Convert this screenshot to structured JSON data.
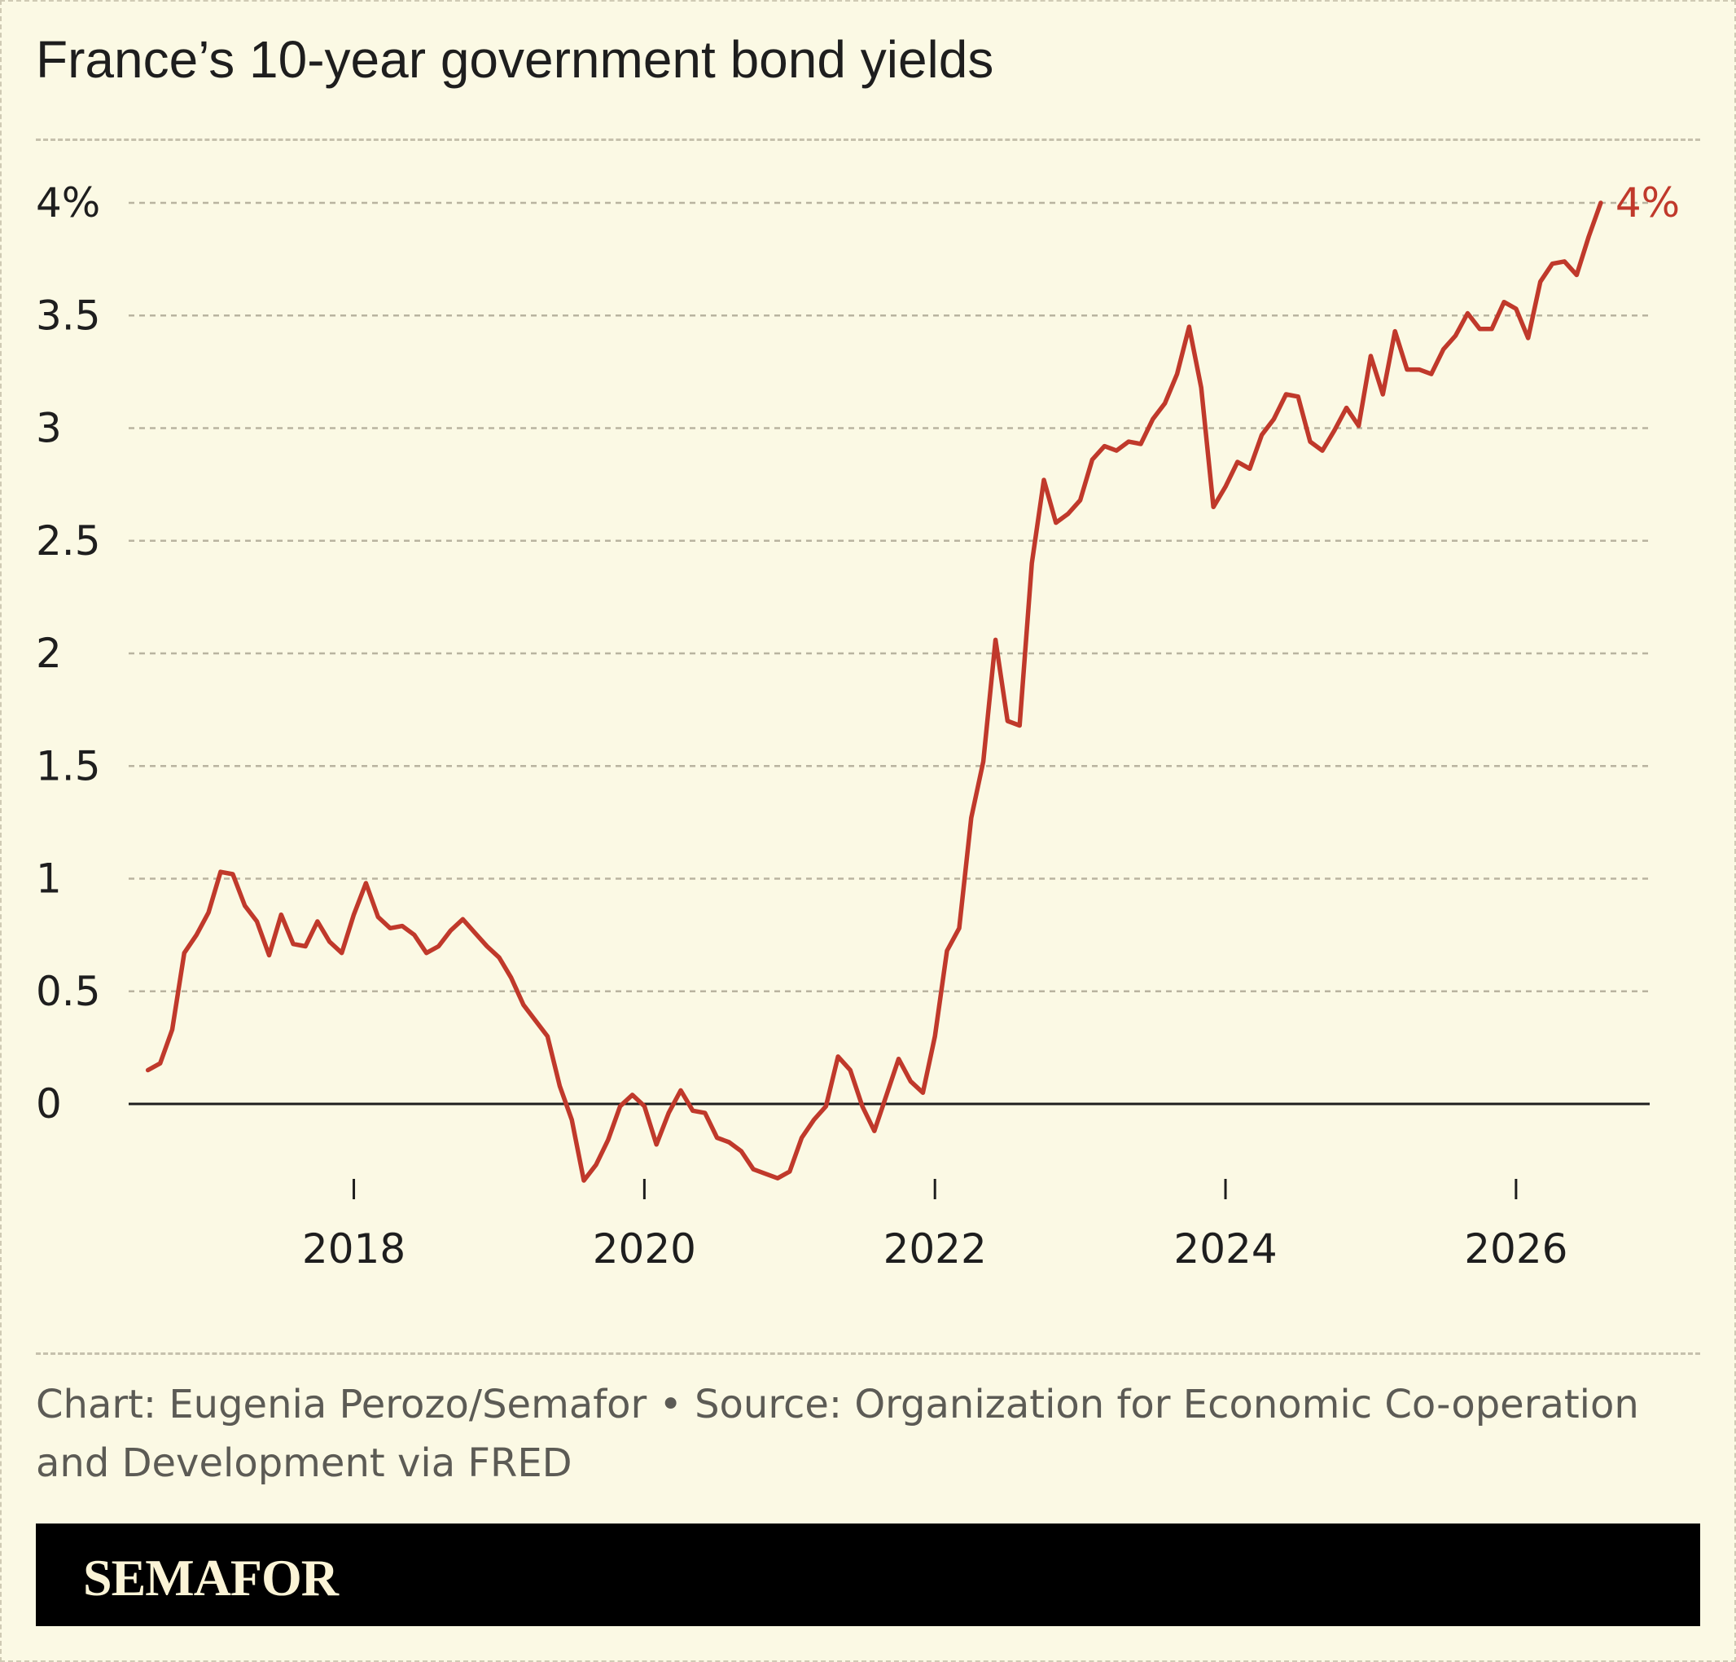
{
  "title": "France’s 10-year government bond yields",
  "source": "Chart: Eugenia Perozo/Semafor • Source: Organization for Economic Co-operation and Development via FRED",
  "brand": "SEMAFOR",
  "colors": {
    "background": "#fbf9e4",
    "line": "#c0392b",
    "grid": "#b9b4a0",
    "zero_line": "#1e1e1e",
    "brand_bar": "#000000",
    "brand_text": "#fbf4d6"
  },
  "chart_data": {
    "type": "line",
    "title": "France’s 10-year government bond yields",
    "xlabel": "",
    "ylabel": "",
    "xlim": [
      2016.45,
      2026.92
    ],
    "ylim": [
      -0.35,
      4.3
    ],
    "grid": true,
    "y_ticks": [
      {
        "value": 4,
        "label": "4%"
      },
      {
        "value": 3.5,
        "label": "3.5"
      },
      {
        "value": 3,
        "label": "3"
      },
      {
        "value": 2.5,
        "label": "2.5"
      },
      {
        "value": 2,
        "label": "2"
      },
      {
        "value": 1.5,
        "label": "1.5"
      },
      {
        "value": 1,
        "label": "1"
      },
      {
        "value": 0.5,
        "label": "0.5"
      },
      {
        "value": 0,
        "label": "0"
      }
    ],
    "x_ticks": [
      {
        "value": 2018,
        "label": "2018"
      },
      {
        "value": 2020,
        "label": "2020"
      },
      {
        "value": 2022,
        "label": "2022"
      },
      {
        "value": 2024,
        "label": "2024"
      },
      {
        "value": 2026,
        "label": "2026"
      }
    ],
    "end_label": "4%",
    "series": [
      {
        "x": [
          2016.583,
          2016.667,
          2016.75,
          2016.833,
          2016.917,
          2017.0,
          2017.083,
          2017.167,
          2017.25,
          2017.333,
          2017.417,
          2017.5,
          2017.583,
          2017.667,
          2017.75,
          2017.833,
          2017.917,
          2018.0,
          2018.083,
          2018.167,
          2018.25,
          2018.333,
          2018.417,
          2018.5,
          2018.583,
          2018.667,
          2018.75,
          2018.833,
          2018.917,
          2019.0,
          2019.083,
          2019.167,
          2019.25,
          2019.333,
          2019.417,
          2019.5,
          2019.583,
          2019.667,
          2019.75,
          2019.833,
          2019.917,
          2020.0,
          2020.083,
          2020.167,
          2020.25,
          2020.333,
          2020.417,
          2020.5,
          2020.583,
          2020.667,
          2020.75,
          2020.833,
          2020.917,
          2021.0,
          2021.083,
          2021.167,
          2021.25,
          2021.333,
          2021.417,
          2021.5,
          2021.583,
          2021.667,
          2021.75,
          2021.833,
          2021.917,
          2022.0,
          2022.083,
          2022.167,
          2022.25,
          2022.333,
          2022.417,
          2022.5,
          2022.583,
          2022.667,
          2022.75,
          2022.833,
          2022.917,
          2023.0,
          2023.083,
          2023.167,
          2023.25,
          2023.333,
          2023.417,
          2023.5,
          2023.583,
          2023.667,
          2023.75,
          2023.833,
          2023.917,
          2024.0,
          2024.083,
          2024.167,
          2024.25,
          2024.333,
          2024.417,
          2024.5,
          2024.583,
          2024.667,
          2024.75,
          2024.833,
          2024.917,
          2025.0,
          2025.083,
          2025.167,
          2025.25,
          2025.333,
          2025.417,
          2025.5,
          2025.583,
          2025.667,
          2025.75,
          2025.833,
          2025.917,
          2026.0,
          2026.083,
          2026.167,
          2026.25,
          2026.333,
          2026.417,
          2026.5,
          2026.583
        ],
        "values": [
          0.15,
          0.18,
          0.33,
          0.67,
          0.75,
          0.85,
          1.03,
          1.02,
          0.88,
          0.81,
          0.66,
          0.84,
          0.71,
          0.7,
          0.81,
          0.72,
          0.67,
          0.84,
          0.98,
          0.83,
          0.78,
          0.79,
          0.75,
          0.67,
          0.7,
          0.77,
          0.82,
          0.76,
          0.7,
          0.65,
          0.56,
          0.44,
          0.37,
          0.3,
          0.08,
          -0.07,
          -0.34,
          -0.27,
          -0.16,
          -0.01,
          0.04,
          -0.01,
          -0.18,
          -0.04,
          0.06,
          -0.03,
          -0.04,
          -0.15,
          -0.17,
          -0.21,
          -0.29,
          -0.31,
          -0.33,
          -0.3,
          -0.15,
          -0.07,
          -0.01,
          0.21,
          0.15,
          -0.01,
          -0.12,
          0.04,
          0.2,
          0.1,
          0.05,
          0.3,
          0.68,
          0.78,
          1.27,
          1.52,
          2.06,
          1.7,
          1.68,
          2.4,
          2.77,
          2.58,
          2.62,
          2.68,
          2.86,
          2.92,
          2.9,
          2.94,
          2.93,
          3.04,
          3.11,
          3.24,
          3.45,
          3.18,
          2.65,
          2.74,
          2.85,
          2.82,
          2.97,
          3.04,
          3.15,
          3.14,
          2.94,
          2.9,
          2.99,
          3.09,
          3.01,
          3.32,
          3.15,
          3.43,
          3.26,
          3.26,
          3.24,
          3.35,
          3.41,
          3.51,
          3.44,
          3.44,
          3.56,
          3.53,
          3.4,
          3.65,
          3.73,
          3.74,
          3.68,
          3.85,
          4.0
        ]
      }
    ]
  }
}
